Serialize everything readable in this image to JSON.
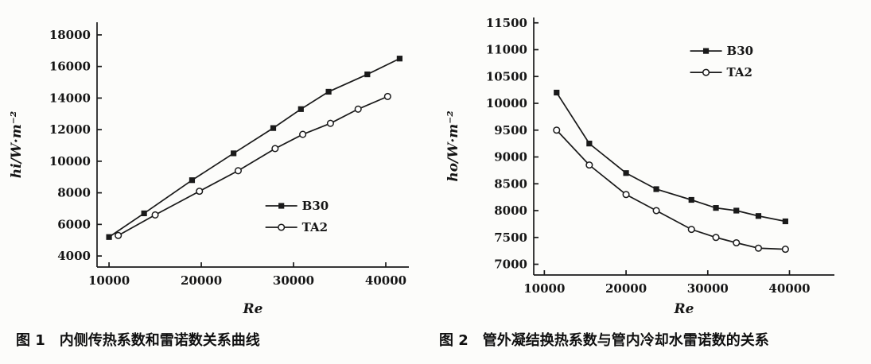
{
  "page": {
    "background": "#fcfcfa",
    "ink_color": "#1a1a1a"
  },
  "chart_data": [
    {
      "id": "figure-1",
      "type": "line",
      "title": "",
      "xlabel": "Re",
      "ylabel": "hi/W·m⁻²",
      "xlim": [
        8700,
        42500
      ],
      "ylim": [
        3300,
        18800
      ],
      "xticks": [
        10000,
        20000,
        30000,
        40000
      ],
      "yticks": [
        4000,
        6000,
        8000,
        10000,
        12000,
        14000,
        16000,
        18000
      ],
      "grid": false,
      "legend_position": {
        "x": 0.54,
        "y": 0.75
      },
      "series": [
        {
          "name": "B30",
          "marker": "filled-square",
          "x": [
            10000,
            13800,
            19000,
            23500,
            27800,
            30800,
            33800,
            38000,
            41500
          ],
          "y": [
            5200,
            6700,
            8800,
            10500,
            12100,
            13300,
            14400,
            15500,
            16500
          ]
        },
        {
          "name": "TA2",
          "marker": "open-circle",
          "x": [
            11000,
            15000,
            19800,
            24000,
            28000,
            31000,
            34000,
            37000,
            40200
          ],
          "y": [
            5300,
            6600,
            8100,
            9400,
            10800,
            11700,
            12400,
            13300,
            14100
          ]
        }
      ],
      "caption": "图 1　内侧传热系数和雷诺数关系曲线"
    },
    {
      "id": "figure-2",
      "type": "line",
      "title": "",
      "xlabel": "Re",
      "ylabel": "ho/W·m⁻²",
      "xlim": [
        8700,
        45500
      ],
      "ylim": [
        6800,
        11600
      ],
      "xticks": [
        10000,
        20000,
        30000,
        40000
      ],
      "yticks": [
        7000,
        7500,
        8000,
        8500,
        9000,
        9500,
        10000,
        10500,
        11000,
        11500
      ],
      "grid": false,
      "legend_position": {
        "x": 0.52,
        "y": 0.13
      },
      "series": [
        {
          "name": "B30",
          "marker": "filled-square",
          "x": [
            11500,
            15500,
            20000,
            23700,
            28000,
            31000,
            33500,
            36200,
            39500
          ],
          "y": [
            10200,
            9250,
            8700,
            8400,
            8200,
            8050,
            8000,
            7900,
            7800
          ]
        },
        {
          "name": "TA2",
          "marker": "open-circle",
          "x": [
            11500,
            15500,
            20000,
            23700,
            28000,
            31000,
            33500,
            36200,
            39500
          ],
          "y": [
            9500,
            8850,
            8300,
            8000,
            7650,
            7500,
            7400,
            7300,
            7280
          ]
        }
      ],
      "caption": "图 2　管外凝结换热系数与管内冷却水雷诺数的关系"
    }
  ]
}
